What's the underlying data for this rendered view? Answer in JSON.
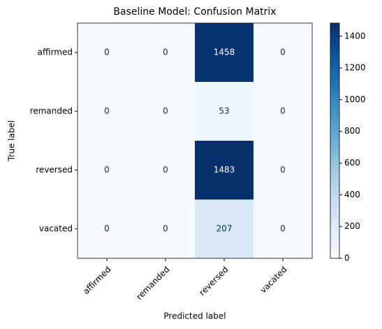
{
  "chart_data": {
    "type": "heatmap",
    "title": "Baseline Model: Confusion Matrix",
    "x_label": "Predicted label",
    "y_label": "True label",
    "x_categories": [
      "affirmed",
      "remanded",
      "reversed",
      "vacated"
    ],
    "y_categories": [
      "affirmed",
      "remanded",
      "reversed",
      "vacated"
    ],
    "values": [
      [
        0,
        0,
        1458,
        0
      ],
      [
        0,
        0,
        53,
        0
      ],
      [
        0,
        0,
        1483,
        0
      ],
      [
        0,
        0,
        207,
        0
      ]
    ],
    "colormap": "Blues",
    "clim": [
      0,
      1483
    ],
    "cticks": [
      0,
      200,
      400,
      600,
      800,
      1000,
      1200,
      1400
    ]
  }
}
